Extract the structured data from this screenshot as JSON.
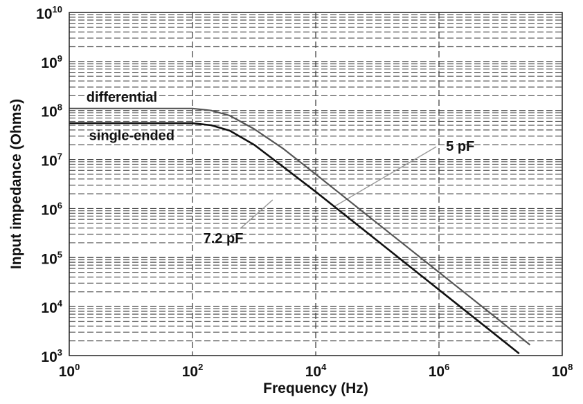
{
  "chart_data": {
    "type": "line",
    "title": "",
    "xlabel": "Frequency (Hz)",
    "ylabel": "Input impedance (Ohms)",
    "xscale": "log",
    "yscale": "log",
    "xlim": [
      1,
      100000000
    ],
    "ylim": [
      1000,
      10000000000
    ],
    "x_ticks": [
      {
        "base": "10",
        "exp": "0"
      },
      {
        "base": "10",
        "exp": "2"
      },
      {
        "base": "10",
        "exp": "4"
      },
      {
        "base": "10",
        "exp": "6"
      },
      {
        "base": "10",
        "exp": "8"
      }
    ],
    "y_ticks": [
      {
        "base": "10",
        "exp": "3"
      },
      {
        "base": "10",
        "exp": "4"
      },
      {
        "base": "10",
        "exp": "5"
      },
      {
        "base": "10",
        "exp": "6"
      },
      {
        "base": "10",
        "exp": "7"
      },
      {
        "base": "10",
        "exp": "8"
      },
      {
        "base": "10",
        "exp": "9"
      },
      {
        "base": "10",
        "exp": "10"
      }
    ],
    "grid": true,
    "series": [
      {
        "name": "differential",
        "color": "#555555",
        "x": [
          1,
          100,
          200,
          400,
          1000,
          3000,
          10000,
          100000,
          1000000,
          10000000,
          30000000
        ],
        "y": [
          110000000,
          110000000,
          100000000,
          79000000,
          42000000,
          16500000,
          5000000,
          500000,
          50000,
          5000,
          1650
        ]
      },
      {
        "name": "single-ended",
        "color": "#111111",
        "x": [
          1,
          100,
          200,
          400,
          1000,
          3000,
          10000,
          100000,
          1000000,
          10000000,
          20000000
        ],
        "y": [
          55000000,
          55000000,
          50000000,
          39000000,
          20000000,
          7000000,
          2200000,
          220000,
          22000,
          2200,
          1100
        ]
      }
    ],
    "annotations": [
      {
        "text": "differential",
        "x": 1.9,
        "y": 150000000
      },
      {
        "text": "single-ended",
        "x": 2.1,
        "y": 25000000
      },
      {
        "text": "5 pF",
        "x": 1300000,
        "y": 15000000,
        "pointer_to": [
          20000,
          1100000
        ]
      },
      {
        "text": "7.2 pF",
        "x": 150,
        "y": 200000,
        "pointer_to": [
          2000,
          1500000
        ]
      }
    ]
  }
}
